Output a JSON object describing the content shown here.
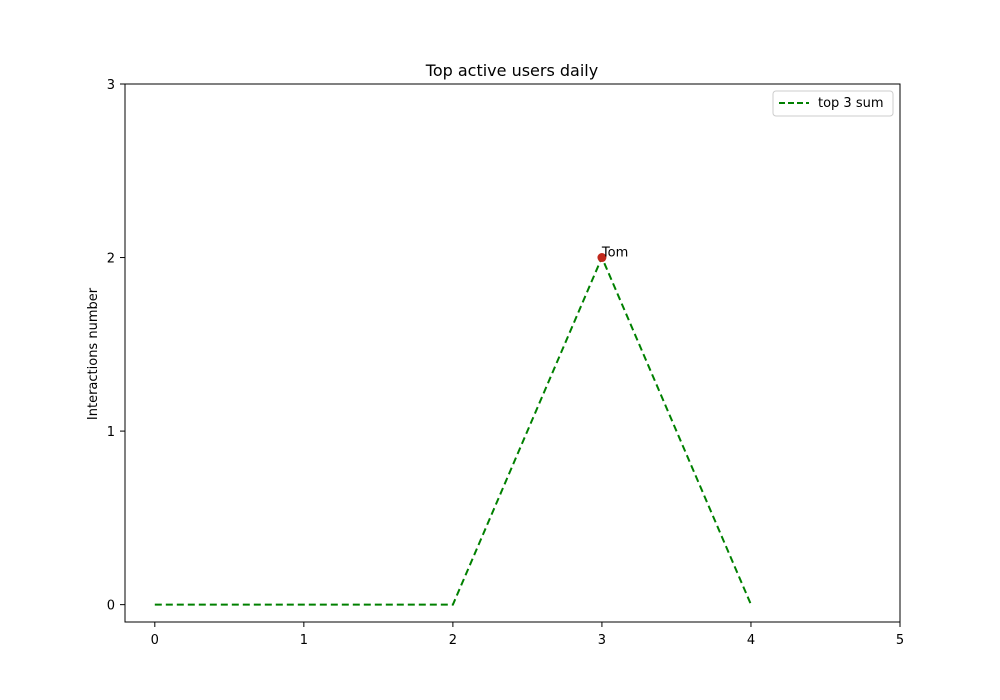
{
  "chart_data": {
    "type": "line",
    "title": "Top active users daily",
    "xlabel": "",
    "ylabel": "Interactions number",
    "xlim": [
      -0.2,
      5
    ],
    "ylim": [
      -0.1,
      3
    ],
    "xticks": [
      0,
      1,
      2,
      3,
      4,
      5
    ],
    "yticks": [
      0,
      1,
      2,
      3
    ],
    "grid": false,
    "legend_position": "top-right",
    "series": [
      {
        "name": "top 3 sum",
        "x": [
          0,
          1,
          2,
          3,
          4
        ],
        "values": [
          0,
          0,
          0,
          2,
          0
        ],
        "color": "#008000",
        "style": "dashed"
      }
    ],
    "annotations": [
      {
        "x": 3,
        "y": 2,
        "text": "Tom",
        "marker_color": "#c0281c"
      }
    ]
  }
}
